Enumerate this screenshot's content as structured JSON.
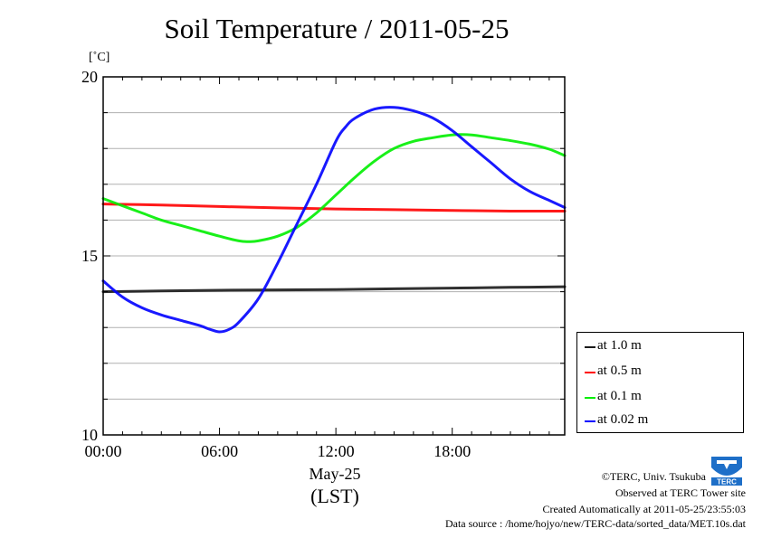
{
  "chart_data": {
    "type": "line",
    "title": "Soil Temperature / 2011-05-25",
    "ylabel": "[˚C]",
    "xlabel": "May-25",
    "xlabel2": "(LST)",
    "xlim": [
      0,
      23.8
    ],
    "ylim": [
      10,
      20
    ],
    "x_ticks": [
      {
        "value": 0,
        "label": "00:00"
      },
      {
        "value": 6,
        "label": "06:00"
      },
      {
        "value": 12,
        "label": "12:00"
      },
      {
        "value": 18,
        "label": "18:00"
      }
    ],
    "y_ticks": [
      {
        "value": 10,
        "label": "10"
      },
      {
        "value": 15,
        "label": "15"
      },
      {
        "value": 20,
        "label": "20"
      }
    ],
    "grid": true,
    "legend_position": "right-bottom",
    "series": [
      {
        "name": "at 1.0 m",
        "color": "#1a1a1a",
        "x": [
          0,
          3,
          6,
          9,
          12,
          15,
          18,
          21,
          23.8
        ],
        "y": [
          14.0,
          14.02,
          14.04,
          14.05,
          14.06,
          14.08,
          14.1,
          14.12,
          14.14
        ]
      },
      {
        "name": "at 0.5 m",
        "color": "#ff0000",
        "x": [
          0,
          3,
          6,
          9,
          12,
          15,
          18,
          21,
          23.8
        ],
        "y": [
          16.45,
          16.42,
          16.38,
          16.34,
          16.31,
          16.29,
          16.27,
          16.25,
          16.25
        ]
      },
      {
        "name": "at 0.1 m",
        "color": "#00ee00",
        "x": [
          0,
          1,
          2,
          3,
          4,
          5,
          6,
          7,
          7.5,
          8,
          9,
          10,
          11,
          12,
          13,
          14,
          15,
          16,
          17,
          18,
          19,
          20,
          21,
          22,
          23,
          23.8
        ],
        "y": [
          16.6,
          16.4,
          16.2,
          16.0,
          15.85,
          15.7,
          15.55,
          15.42,
          15.4,
          15.42,
          15.55,
          15.8,
          16.2,
          16.7,
          17.2,
          17.65,
          18.0,
          18.2,
          18.3,
          18.38,
          18.38,
          18.3,
          18.22,
          18.12,
          17.98,
          17.8
        ]
      },
      {
        "name": "at 0.02 m",
        "color": "#0000ff",
        "x": [
          0,
          1,
          2,
          3,
          4,
          5,
          5.5,
          6,
          6.5,
          7,
          8,
          9,
          10,
          11,
          12,
          12.5,
          13,
          14,
          15,
          16,
          17,
          18,
          19,
          20,
          21,
          22,
          23,
          23.8
        ],
        "y": [
          14.3,
          13.85,
          13.55,
          13.35,
          13.2,
          13.05,
          12.95,
          12.88,
          12.95,
          13.15,
          13.8,
          14.8,
          15.9,
          17.0,
          18.2,
          18.6,
          18.85,
          19.1,
          19.15,
          19.05,
          18.85,
          18.5,
          18.05,
          17.6,
          17.15,
          16.8,
          16.55,
          16.35
        ]
      }
    ]
  },
  "footer": {
    "copyright": "©TERC, Univ. Tsukuba",
    "observed": "Observed at TERC Tower site",
    "created": "Created Automatically at 2011-05-25/23:55:03",
    "source": "Data source : /home/hojyo/new/TERC-data/sorted_data/MET.10s.dat"
  },
  "logo": {
    "text": "TERC",
    "color": "#1e6fc8"
  }
}
